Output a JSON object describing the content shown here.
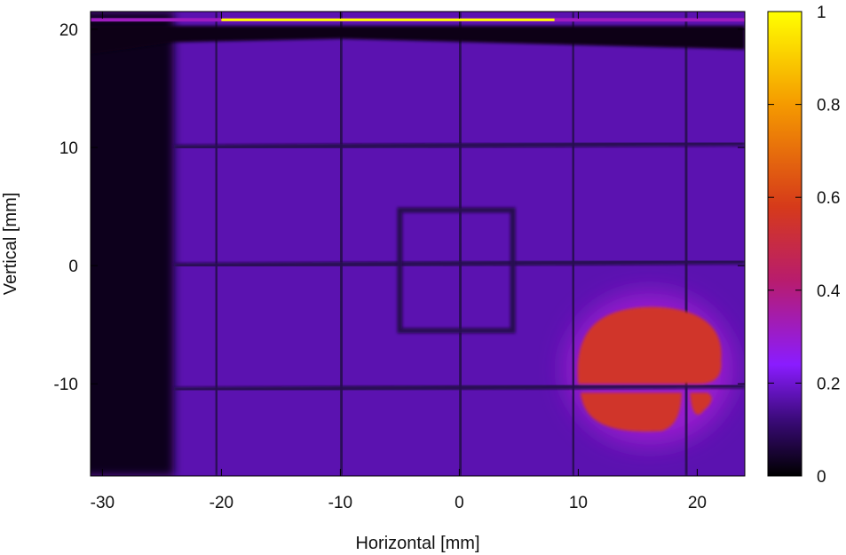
{
  "chart_data": {
    "type": "heatmap",
    "title": "",
    "xlabel": "Horizontal [mm]",
    "ylabel": "Vertical [mm]",
    "xlim": [
      -31,
      24
    ],
    "ylim": [
      -17.8,
      21.5
    ],
    "xticks": [
      -30,
      -20,
      -10,
      0,
      10,
      20
    ],
    "yticks": [
      -10,
      0,
      10,
      20
    ],
    "colorbar": {
      "range": [
        0,
        1
      ],
      "ticks": [
        0,
        0.2,
        0.4,
        0.6,
        0.8,
        1
      ],
      "tick_labels": [
        "0",
        "0.2",
        "0.4",
        "0.6",
        "0.8",
        "1"
      ],
      "colormap": [
        "#000000",
        "#3a0a78",
        "#8a1cff",
        "#b81c6e",
        "#d63a1a",
        "#f59a00",
        "#ffff00"
      ],
      "colormap_stops": [
        0,
        0.12,
        0.24,
        0.42,
        0.58,
        0.8,
        1
      ]
    },
    "background_level": 0.17,
    "dark_region": {
      "x": [
        -31,
        -24
      ],
      "y": [
        -17.8,
        21.5
      ],
      "level": 0.03
    },
    "top_dark_band": {
      "y": [
        18.3,
        20.0
      ],
      "level": 0.02
    },
    "top_edge_line": {
      "y": 20.8,
      "level": 0.32,
      "bright_x": [
        -20,
        8
      ],
      "bright_level": 1.0
    },
    "grid_wires_x": [
      -20.5,
      -10,
      0,
      9.5,
      19
    ],
    "grid_wires_y": [
      -10.5,
      0,
      10
    ],
    "wire_level": 0.08,
    "square_marker": {
      "x": [
        -5,
        4.5
      ],
      "y": [
        -5.5,
        4.7
      ],
      "level": 0.08
    },
    "hot_spot": {
      "x": [
        10,
        22
      ],
      "y": [
        -14,
        -3.5
      ],
      "level": 0.55,
      "halo_level": 0.3
    }
  }
}
